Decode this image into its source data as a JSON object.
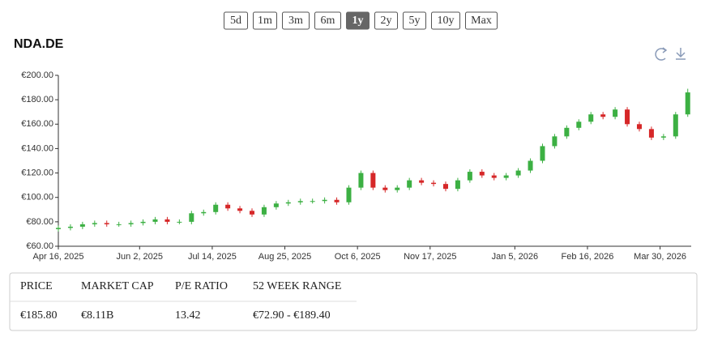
{
  "ranges": [
    "5d",
    "1m",
    "3m",
    "6m",
    "1y",
    "2y",
    "5y",
    "10y",
    "Max"
  ],
  "active_range": "1y",
  "chart_data": {
    "type": "candlestick",
    "title": "NDA.DE",
    "x": [
      "2025-04-16",
      "2025-04-23",
      "2025-04-30",
      "2025-05-07",
      "2025-05-14",
      "2025-05-21",
      "2025-05-28",
      "2025-06-04",
      "2025-06-11",
      "2025-06-18",
      "2025-06-25",
      "2025-07-02",
      "2025-07-09",
      "2025-07-16",
      "2025-07-23",
      "2025-07-30",
      "2025-08-06",
      "2025-08-13",
      "2025-08-20",
      "2025-08-27",
      "2025-09-03",
      "2025-09-10",
      "2025-09-17",
      "2025-09-24",
      "2025-10-01",
      "2025-10-08",
      "2025-10-15",
      "2025-10-22",
      "2025-10-29",
      "2025-11-05",
      "2025-11-12",
      "2025-11-19",
      "2025-11-26",
      "2025-12-03",
      "2025-12-10",
      "2025-12-17",
      "2025-12-24",
      "2025-12-31",
      "2026-01-07",
      "2026-01-14",
      "2026-01-21",
      "2026-01-28",
      "2026-02-04",
      "2026-02-11",
      "2026-02-18",
      "2026-02-25",
      "2026-03-04",
      "2026-03-11",
      "2026-03-18",
      "2026-03-25",
      "2026-04-01",
      "2026-04-08",
      "2026-04-15"
    ],
    "open": [
      74,
      75,
      76,
      78,
      79,
      78,
      78,
      79,
      80,
      82,
      80,
      80,
      87,
      88,
      94,
      91,
      89,
      86,
      92,
      95,
      96,
      97,
      97,
      98,
      96,
      108,
      120,
      108,
      106,
      108,
      114,
      112,
      111,
      107,
      114,
      121,
      118,
      116,
      118,
      122,
      130,
      142,
      150,
      157,
      162,
      168,
      166,
      172,
      160,
      156,
      149,
      150,
      168
    ],
    "high": [
      77,
      78,
      80,
      81,
      81,
      80,
      81,
      82,
      84,
      84,
      82,
      89,
      90,
      96,
      96,
      93,
      91,
      94,
      97,
      98,
      99,
      99,
      100,
      100,
      110,
      122,
      122,
      110,
      110,
      116,
      116,
      114,
      113,
      116,
      123,
      123,
      120,
      120,
      124,
      132,
      144,
      152,
      159,
      164,
      170,
      170,
      174,
      174,
      162,
      158,
      152,
      170,
      189
    ],
    "low": [
      72,
      73,
      74,
      76,
      76,
      76,
      76,
      77,
      78,
      78,
      78,
      78,
      85,
      86,
      89,
      87,
      84,
      84,
      90,
      93,
      94,
      95,
      95,
      94,
      94,
      106,
      106,
      104,
      104,
      106,
      110,
      109,
      105,
      105,
      112,
      116,
      114,
      114,
      116,
      120,
      128,
      140,
      148,
      155,
      160,
      164,
      164,
      158,
      154,
      147,
      147,
      148,
      166
    ],
    "close": [
      75,
      76,
      78,
      79,
      78,
      78,
      79,
      80,
      82,
      80,
      80,
      87,
      88,
      94,
      91,
      89,
      86,
      92,
      95,
      96,
      97,
      97,
      98,
      96,
      108,
      120,
      108,
      106,
      108,
      114,
      112,
      111,
      107,
      114,
      121,
      118,
      116,
      118,
      122,
      130,
      142,
      150,
      157,
      162,
      168,
      166,
      172,
      160,
      156,
      149,
      150,
      168,
      186
    ],
    "up_color": "#3cb043",
    "down_color": "#d62728",
    "xlim": [
      "2025-04-16",
      "2026-04-17"
    ],
    "xticks": [
      {
        "value": "2025-04-16",
        "label": "Apr 16, 2025"
      },
      {
        "value": "2025-06-02",
        "label": "Jun 2, 2025"
      },
      {
        "value": "2025-07-14",
        "label": "Jul 14, 2025"
      },
      {
        "value": "2025-08-25",
        "label": "Aug 25, 2025"
      },
      {
        "value": "2025-10-06",
        "label": "Oct 6, 2025"
      },
      {
        "value": "2025-11-17",
        "label": "Nov 17, 2025"
      },
      {
        "value": "2026-01-05",
        "label": "Jan 5, 2026"
      },
      {
        "value": "2026-02-16",
        "label": "Feb 16, 2026"
      },
      {
        "value": "2026-03-30",
        "label": "Mar 30, 2026"
      }
    ],
    "ylim": [
      60,
      200
    ],
    "yticks": [
      {
        "value": 60,
        "label": "€60.00"
      },
      {
        "value": 80,
        "label": "€80.00"
      },
      {
        "value": 100,
        "label": "€100.00"
      },
      {
        "value": 120,
        "label": "€120.00"
      },
      {
        "value": 140,
        "label": "€140.00"
      },
      {
        "value": 160,
        "label": "€160.00"
      },
      {
        "value": 180,
        "label": "€180.00"
      },
      {
        "value": 200,
        "label": "€200.00"
      }
    ]
  },
  "stats": {
    "headers": [
      "PRICE",
      "MARKET CAP",
      "P/E RATIO",
      "52 WEEK RANGE"
    ],
    "values": [
      "€185.80",
      "€8.11B",
      "13.42",
      "€72.90 - €189.40"
    ]
  }
}
